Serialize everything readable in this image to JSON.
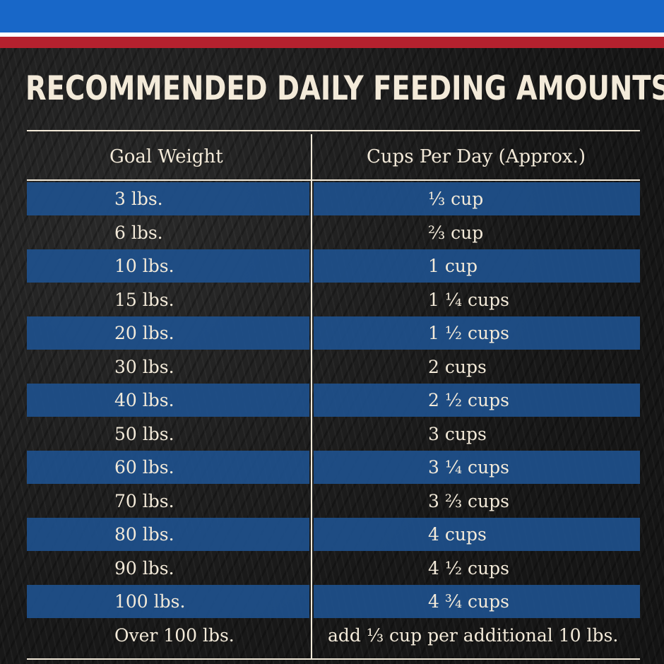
{
  "title": "RECOMMENDED DAILY FEEDING AMOUNTS:",
  "colors": {
    "top_bar": "#1867c8",
    "stripe_white": "#ffffff",
    "stripe_red": "#b5212e",
    "row_blue": "#1e508c",
    "text": "#f3ead9"
  },
  "table": {
    "headers": [
      "Goal Weight",
      "Cups Per Day (Approx.)"
    ],
    "rows": [
      {
        "weight": "3 lbs.",
        "cups": "⅓ cup"
      },
      {
        "weight": "6 lbs.",
        "cups": "⅔ cup"
      },
      {
        "weight": "10 lbs.",
        "cups": "1 cup"
      },
      {
        "weight": "15 lbs.",
        "cups": "1 ¼ cups"
      },
      {
        "weight": "20 lbs.",
        "cups": "1 ½ cups"
      },
      {
        "weight": "30 lbs.",
        "cups": "2 cups"
      },
      {
        "weight": "40 lbs.",
        "cups": "2 ½ cups"
      },
      {
        "weight": "50 lbs.",
        "cups": "3 cups"
      },
      {
        "weight": "60 lbs.",
        "cups": "3 ¼ cups"
      },
      {
        "weight": "70 lbs.",
        "cups": "3 ⅔ cups"
      },
      {
        "weight": "80 lbs.",
        "cups": "4 cups"
      },
      {
        "weight": "90 lbs.",
        "cups": "4 ½ cups"
      },
      {
        "weight": "100 lbs.",
        "cups": "4 ¾ cups"
      },
      {
        "weight": "Over 100 lbs.",
        "cups": "add ⅓ cup per additional 10 lbs."
      }
    ]
  }
}
